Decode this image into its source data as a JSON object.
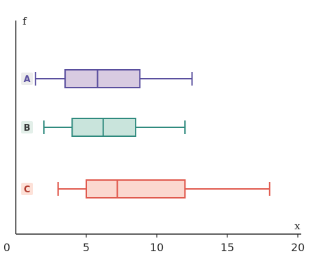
{
  "chart_data": {
    "type": "boxplot",
    "orientation": "horizontal",
    "title": "",
    "xlabel": "x",
    "ylabel": "f",
    "xlim": [
      0,
      20
    ],
    "xticks": [
      0,
      5,
      10,
      15,
      20
    ],
    "grid": false,
    "series": [
      {
        "name": "A",
        "min": 1.4,
        "q1": 3.5,
        "median": 5.8,
        "q3": 8.8,
        "max": 12.5,
        "stroke": "#5a4f9e",
        "fill": "#d8cbe1",
        "label_bg": "#ececec",
        "label_color": "#5a4f9e"
      },
      {
        "name": "B",
        "min": 2.0,
        "q1": 4.0,
        "median": 6.2,
        "q3": 8.5,
        "max": 12.0,
        "stroke": "#2f8a7e",
        "fill": "#c9e4dc",
        "label_bg": "#e3efe9",
        "label_color": "#3a3a3a"
      },
      {
        "name": "C",
        "min": 3.0,
        "q1": 5.0,
        "median": 7.2,
        "q3": 12.0,
        "max": 18.0,
        "stroke": "#e05a4e",
        "fill": "#fbd8cf",
        "label_bg": "#fde1d8",
        "label_color": "#b03a2e"
      }
    ]
  }
}
